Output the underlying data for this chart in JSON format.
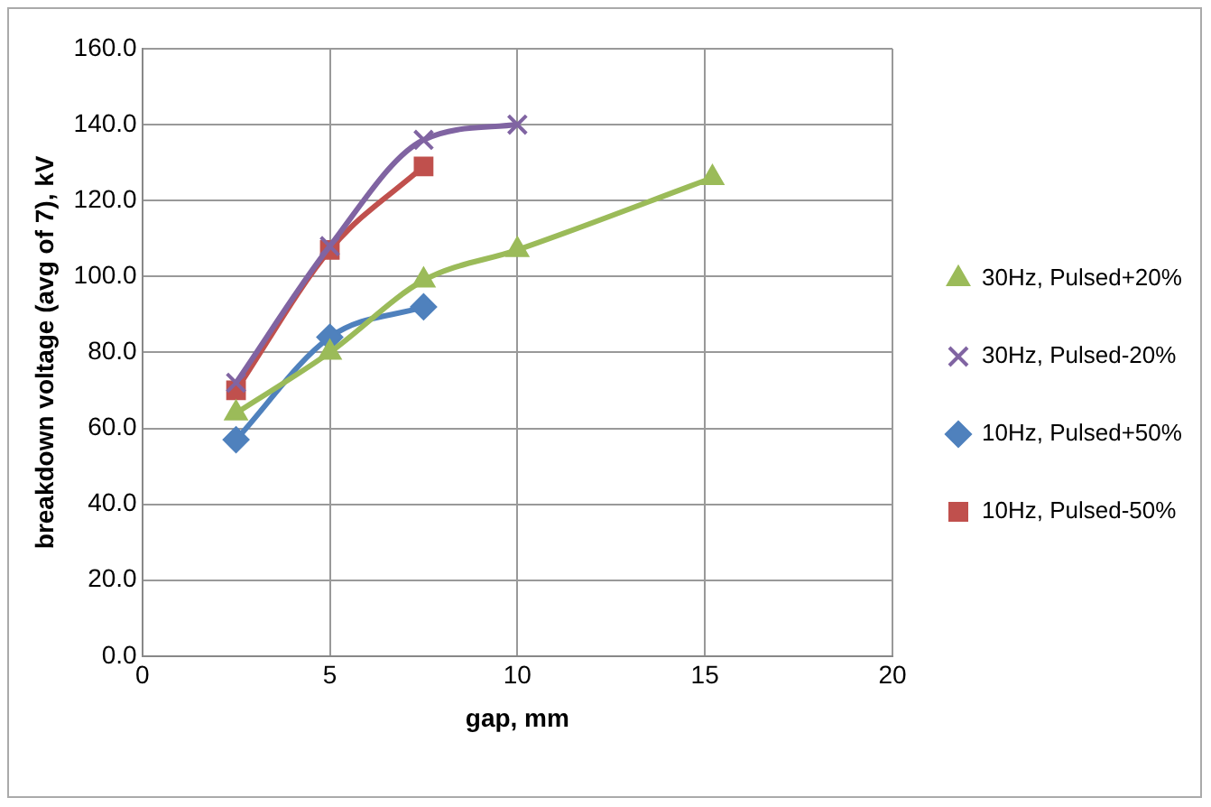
{
  "chart_data": {
    "type": "line",
    "xlabel": "gap, mm",
    "ylabel": "breakdown voltage (avg of 7), kV",
    "xlim": [
      0,
      20
    ],
    "xticks": [
      0,
      5,
      10,
      15,
      20
    ],
    "ylim": [
      0,
      160
    ],
    "yticks": [
      {
        "value": 0,
        "label": "0.0"
      },
      {
        "value": 20,
        "label": "20.0"
      },
      {
        "value": 40,
        "label": "40.0"
      },
      {
        "value": 60,
        "label": "60.0"
      },
      {
        "value": 80,
        "label": "80.0"
      },
      {
        "value": 100,
        "label": "100.0"
      },
      {
        "value": 120,
        "label": "120.0"
      },
      {
        "value": 140,
        "label": "140.0"
      },
      {
        "value": 160,
        "label": "160.0"
      }
    ],
    "grid": true,
    "legend": "right",
    "series": [
      {
        "name": "30Hz, Pulsed+20%",
        "color": "#9bbb59",
        "marker": "triangle",
        "x": [
          2.5,
          5,
          7.5,
          10,
          15.2
        ],
        "values": [
          64,
          80,
          99,
          107,
          126
        ]
      },
      {
        "name": "30Hz, Pulsed-20%",
        "color": "#8064a2",
        "marker": "cross",
        "x": [
          2.5,
          5,
          7.5,
          10
        ],
        "values": [
          72,
          108,
          136,
          140
        ]
      },
      {
        "name": "10Hz, Pulsed+50%",
        "color": "#4f81bd",
        "marker": "diamond",
        "x": [
          2.5,
          5,
          7.5
        ],
        "values": [
          57,
          84,
          92
        ]
      },
      {
        "name": "10Hz, Pulsed-50%",
        "color": "#c0504d",
        "marker": "square",
        "x": [
          2.5,
          5,
          7.5
        ],
        "values": [
          70,
          107,
          129
        ]
      }
    ]
  }
}
